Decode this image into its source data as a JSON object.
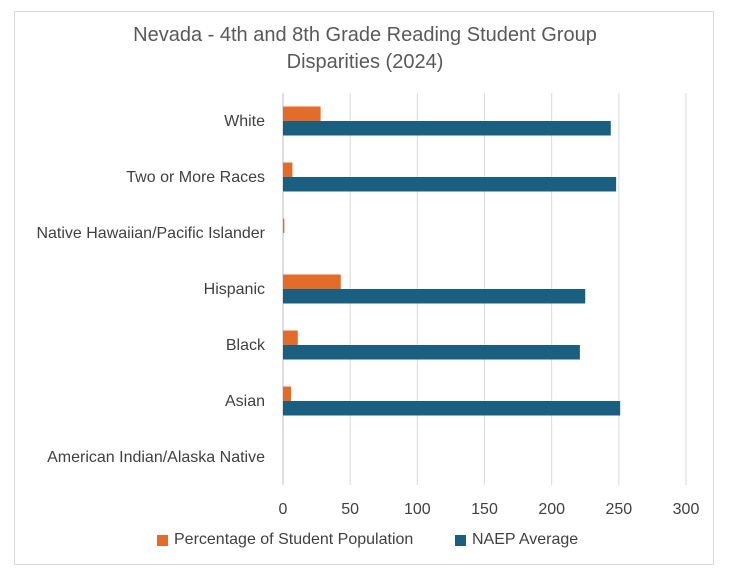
{
  "chart_data": {
    "type": "bar",
    "orientation": "horizontal",
    "title_line1": "Nevada - 4th and 8th Grade Reading Student Group",
    "title_line2": "Disparities  (2024)",
    "categories": [
      "American Indian/Alaska Native",
      "Asian",
      "Black",
      "Hispanic",
      "Native Hawaiian/Pacific Islander",
      "Two or More Races",
      "White"
    ],
    "series": [
      {
        "name": "Percentage of Student Population",
        "color": "#E46C2A",
        "values": [
          0,
          6,
          11,
          43,
          1,
          7,
          28
        ]
      },
      {
        "name": "NAEP Average",
        "color": "#1A5E80",
        "values": [
          0,
          251,
          221,
          225,
          0,
          248,
          244
        ]
      }
    ],
    "xlim": [
      0,
      300
    ],
    "xticks": [
      "0",
      "50",
      "100",
      "150",
      "200",
      "250",
      "300"
    ],
    "grid": true,
    "legend_position": "bottom"
  }
}
